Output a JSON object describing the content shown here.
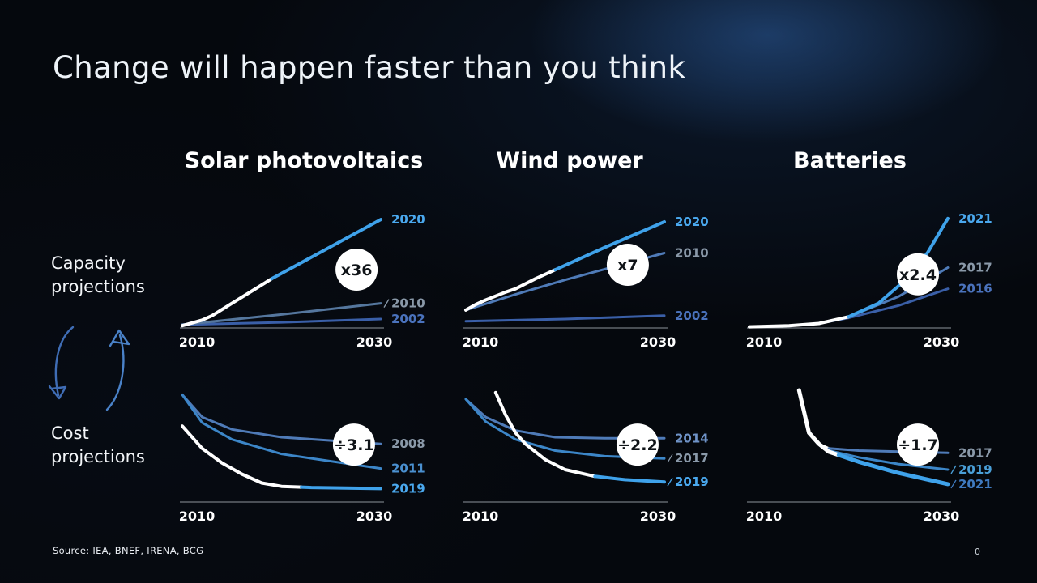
{
  "slide": {
    "title": "Change will happen faster than you think",
    "source": "Source:  IEA, BNEF,  IRENA, BCG",
    "page_number": "0",
    "capacity_label": "Capacity\nprojections",
    "cost_label": "Cost\nprojections"
  },
  "columns": [
    {
      "label": "Solar photovoltaics"
    },
    {
      "label": "Wind power"
    },
    {
      "label": "Batteries"
    }
  ],
  "chart_data": [
    {
      "type": "line",
      "title": "Solar photovoltaics — Capacity projections",
      "xlim": [
        2010,
        2030
      ],
      "x_ticks": [
        "2010",
        "2030"
      ],
      "ylim": [
        0,
        100
      ],
      "badge": "x36",
      "badge_pos": [
        0.878,
        0.478
      ],
      "series": [
        {
          "name": "2002",
          "color": "#3a5fa8",
          "label_color": "#4a72bc",
          "points": [
            [
              2010,
              3
            ],
            [
              2020,
              5
            ],
            [
              2030,
              8
            ]
          ]
        },
        {
          "name": "2010",
          "color": "#55779e",
          "label_color": "#8a99a9",
          "tick": true,
          "points": [
            [
              2010,
              3
            ],
            [
              2020,
              12
            ],
            [
              2030,
              22
            ]
          ]
        },
        {
          "name": "2020",
          "color": "#3fa2ea",
          "label_color": "#4aa8ee",
          "width": 4,
          "white_until": 2019,
          "points": [
            [
              2010,
              2
            ],
            [
              2012,
              7
            ],
            [
              2013,
              11
            ],
            [
              2015,
              22
            ],
            [
              2017,
              33
            ],
            [
              2019,
              44
            ],
            [
              2030,
              97
            ]
          ]
        }
      ]
    },
    {
      "type": "line",
      "title": "Wind power — Capacity projections",
      "xlim": [
        2010,
        2030
      ],
      "x_ticks": [
        "2010",
        "2030"
      ],
      "ylim": [
        0,
        100
      ],
      "badge": "x7",
      "badge_pos": [
        0.816,
        0.435
      ],
      "series": [
        {
          "name": "2002",
          "color": "#3a5fa8",
          "label_color": "#4a72bc",
          "points": [
            [
              2010,
              6
            ],
            [
              2020,
              8
            ],
            [
              2030,
              11
            ]
          ]
        },
        {
          "name": "2010",
          "color": "#4f7bb8",
          "label_color": "#8a99a9",
          "points": [
            [
              2010,
              16
            ],
            [
              2015,
              30
            ],
            [
              2020,
              43
            ],
            [
              2025,
              55
            ],
            [
              2030,
              67
            ]
          ]
        },
        {
          "name": "2020",
          "color": "#3fa2ea",
          "label_color": "#4aa8ee",
          "width": 4,
          "white_until": 2019,
          "points": [
            [
              2010,
              16
            ],
            [
              2011,
              21
            ],
            [
              2012,
              25
            ],
            [
              2014,
              32
            ],
            [
              2015,
              35
            ],
            [
              2017,
              44
            ],
            [
              2019,
              52
            ],
            [
              2024,
              72
            ],
            [
              2030,
              95
            ]
          ]
        }
      ]
    },
    {
      "type": "line",
      "title": "Batteries — Capacity projections",
      "xlim": [
        2010,
        2030
      ],
      "x_ticks": [
        "2010",
        "2030"
      ],
      "ylim": [
        0,
        100
      ],
      "badge": "x2.4",
      "badge_pos": [
        0.849,
        0.52
      ],
      "series": [
        {
          "name": "2016",
          "color": "#3a5fa8",
          "label_color": "#4a72bc",
          "white_until": 2018,
          "points": [
            [
              2010,
              1
            ],
            [
              2014,
              2
            ],
            [
              2017,
              4
            ],
            [
              2020,
              9
            ],
            [
              2025,
              20
            ],
            [
              2030,
              35
            ]
          ]
        },
        {
          "name": "2017",
          "color": "#4f7bb8",
          "label_color": "#8a99a9",
          "white_until": 2018,
          "points": [
            [
              2010,
              1
            ],
            [
              2014,
              2
            ],
            [
              2017,
              4
            ],
            [
              2020,
              10
            ],
            [
              2025,
              28
            ],
            [
              2030,
              54
            ]
          ]
        },
        {
          "name": "2021",
          "color": "#3fa2ea",
          "label_color": "#4aa8ee",
          "width": 4,
          "white_until": 2020,
          "points": [
            [
              2010,
              1
            ],
            [
              2014,
              2
            ],
            [
              2017,
              4
            ],
            [
              2020,
              10
            ],
            [
              2023,
              22
            ],
            [
              2026,
              45
            ],
            [
              2028,
              68
            ],
            [
              2030,
              98
            ]
          ]
        }
      ]
    },
    {
      "type": "line",
      "title": "Solar photovoltaics — Cost projections",
      "xlim": [
        2010,
        2030
      ],
      "x_ticks": [
        "2010",
        "2030"
      ],
      "ylim": [
        0,
        100
      ],
      "badge": "÷3.1",
      "badge_pos": [
        0.865,
        0.486
      ],
      "series": [
        {
          "name": "2008",
          "color": "#4f7bb8",
          "label_color": "#8a99a9",
          "points": [
            [
              2010,
              96
            ],
            [
              2012,
              76
            ],
            [
              2015,
              65
            ],
            [
              2020,
              58
            ],
            [
              2030,
              52
            ]
          ]
        },
        {
          "name": "2011",
          "color": "#3c86c8",
          "label_color": "#4a90d0",
          "points": [
            [
              2010,
              96
            ],
            [
              2012,
              71
            ],
            [
              2015,
              56
            ],
            [
              2020,
              43
            ],
            [
              2030,
              30
            ]
          ]
        },
        {
          "name": "2019",
          "color": "#3fa2ea",
          "label_color": "#4aa8ee",
          "width": 4,
          "white_until": 2022,
          "points": [
            [
              2010,
              68
            ],
            [
              2012,
              48
            ],
            [
              2014,
              35
            ],
            [
              2016,
              25
            ],
            [
              2018,
              17
            ],
            [
              2020,
              14
            ],
            [
              2023,
              13
            ],
            [
              2030,
              12
            ]
          ]
        }
      ]
    },
    {
      "type": "line",
      "title": "Wind power — Cost projections",
      "xlim": [
        2010,
        2030
      ],
      "x_ticks": [
        "2010",
        "2030"
      ],
      "ylim": [
        0,
        100
      ],
      "badge": "÷2.2",
      "badge_pos": [
        0.865,
        0.486
      ],
      "series": [
        {
          "name": "2014",
          "color": "#4f7bb8",
          "label_color": "#6f93c8",
          "points": [
            [
              2010,
              92
            ],
            [
              2012,
              76
            ],
            [
              2015,
              64
            ],
            [
              2019,
              58
            ],
            [
              2024,
              57
            ],
            [
              2030,
              57
            ]
          ]
        },
        {
          "name": "2017",
          "color": "#3c86c8",
          "label_color": "#8a99a9",
          "tick": true,
          "points": [
            [
              2010,
              92
            ],
            [
              2012,
              72
            ],
            [
              2015,
              56
            ],
            [
              2019,
              46
            ],
            [
              2024,
              41
            ],
            [
              2030,
              39
            ]
          ]
        },
        {
          "name": "2019",
          "color": "#3fa2ea",
          "label_color": "#4aa8ee",
          "width": 4,
          "white_until": 2023,
          "tick": true,
          "points": [
            [
              2013,
              98
            ],
            [
              2014,
              78
            ],
            [
              2015,
              62
            ],
            [
              2016,
              52
            ],
            [
              2018,
              38
            ],
            [
              2020,
              29
            ],
            [
              2023,
              23
            ],
            [
              2026,
              20
            ],
            [
              2030,
              18
            ]
          ]
        }
      ]
    },
    {
      "type": "line",
      "title": "Batteries — Cost projections",
      "xlim": [
        2010,
        2030
      ],
      "x_ticks": [
        "2010",
        "2030"
      ],
      "ylim": [
        0,
        100
      ],
      "badge": "÷1.7",
      "badge_pos": [
        0.849,
        0.486
      ],
      "series": [
        {
          "name": "2017",
          "color": "#4f7bb8",
          "label_color": "#8a99a9",
          "white_until": 2018,
          "points": [
            [
              2015,
              100
            ],
            [
              2016,
              62
            ],
            [
              2017,
              52
            ],
            [
              2018,
              48
            ],
            [
              2021,
              46
            ],
            [
              2030,
              44
            ]
          ]
        },
        {
          "name": "2019",
          "color": "#3c86c8",
          "label_color": "#4a9fd8",
          "white_until": 2018,
          "tick": true,
          "points": [
            [
              2015,
              100
            ],
            [
              2016,
              62
            ],
            [
              2017,
              52
            ],
            [
              2018,
              46
            ],
            [
              2021,
              40
            ],
            [
              2025,
              34
            ],
            [
              2030,
              29
            ]
          ]
        },
        {
          "name": "2021",
          "color": "#3fa2ea",
          "label_color": "#3f7ac0",
          "width": 5,
          "white_until": 2019,
          "tick": true,
          "points": [
            [
              2015,
              100
            ],
            [
              2016,
              62
            ],
            [
              2017,
              52
            ],
            [
              2018,
              45
            ],
            [
              2021,
              36
            ],
            [
              2025,
              26
            ],
            [
              2030,
              16
            ]
          ]
        }
      ]
    }
  ]
}
